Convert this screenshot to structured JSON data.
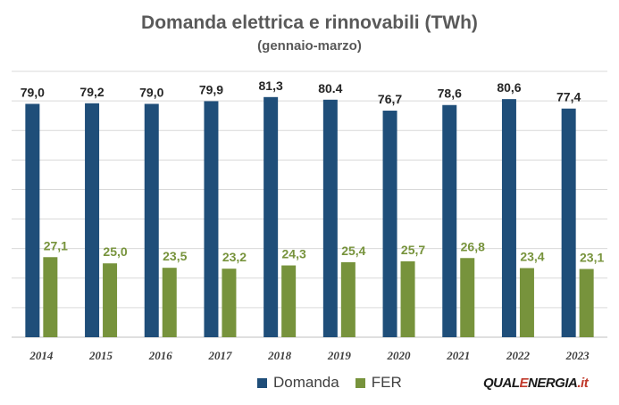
{
  "chart_data": {
    "type": "bar",
    "title": "Domanda elettrica e rinnovabili (TWh)",
    "subtitle": "(gennaio-marzo)",
    "categories": [
      "2014",
      "2015",
      "2016",
      "2017",
      "2018",
      "2019",
      "2020",
      "2021",
      "2022",
      "2023"
    ],
    "series": [
      {
        "name": "Domanda",
        "color": "#1f4e79",
        "values": [
          79.0,
          79.2,
          79.0,
          79.9,
          81.3,
          80.4,
          76.7,
          78.6,
          80.6,
          77.4
        ],
        "labels": [
          "79,0",
          "79,2",
          "79,0",
          "79,9",
          "81,3",
          "80.4",
          "76,7",
          "78,6",
          "80,6",
          "77,4"
        ]
      },
      {
        "name": "FER",
        "color": "#77933c",
        "values": [
          27.1,
          25.0,
          23.5,
          23.2,
          24.3,
          25.4,
          25.7,
          26.8,
          23.4,
          23.1
        ],
        "labels": [
          "27,1",
          "25,0",
          "23,5",
          "23,2",
          "24,3",
          "25,4",
          "25,7",
          "26,8",
          "23,4",
          "23,1"
        ]
      }
    ],
    "ylim": [
      0,
      90
    ],
    "grid": true,
    "legend_position": "bottom"
  },
  "logo": {
    "part1": "QUAL",
    "part2": "E",
    "part3": "NERGIA",
    "part4": ".it"
  }
}
